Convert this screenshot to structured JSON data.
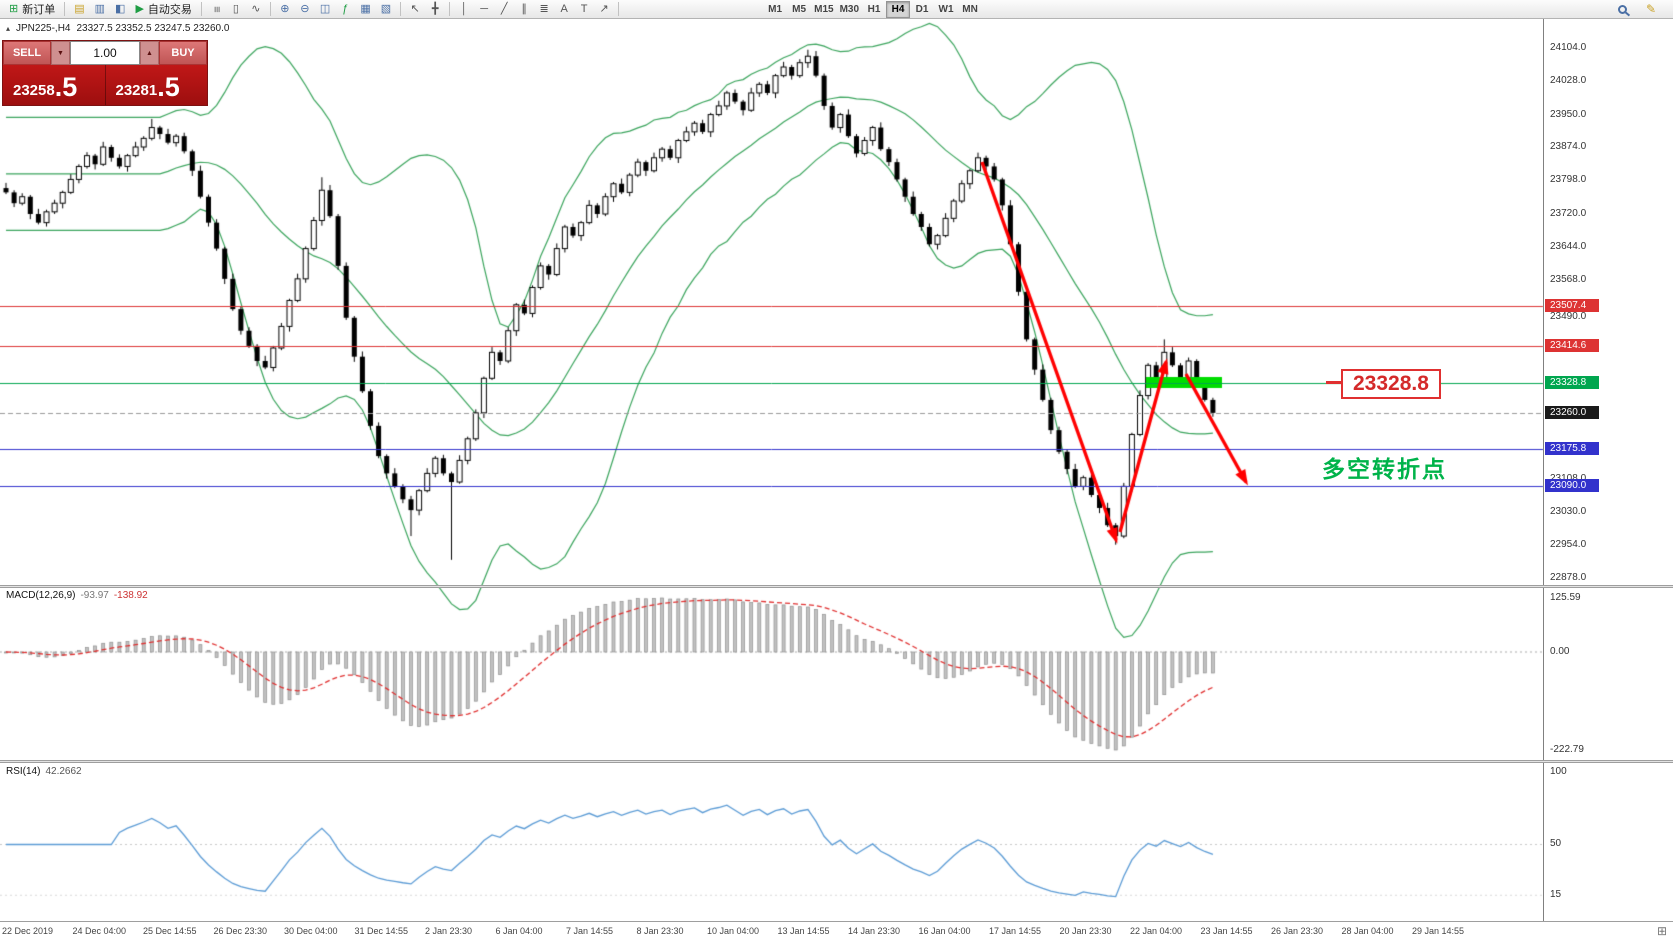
{
  "toolbar": {
    "new_order_label": "新订单",
    "autotrading_label": "自动交易",
    "timeframes": [
      "M1",
      "M5",
      "M15",
      "M30",
      "H1",
      "H4",
      "D1",
      "W1",
      "MN"
    ],
    "active_timeframe": "H4"
  },
  "icons": {
    "new_chart": "⊞",
    "profiles": "▤",
    "market_watch": "▥",
    "navigator": "◧",
    "play": "▶",
    "bar_chart": "≡",
    "candle_chart": "▯",
    "line_chart": "∿",
    "zoom_in": "⊕",
    "zoom_out": "⊖",
    "tile_windows": "◫",
    "indicators": "ƒ",
    "periods": "▦",
    "templates": "▧",
    "cursor": "↖",
    "crosshair": "╋",
    "vline": "│",
    "hline": "─",
    "trendline": "╱",
    "channel": "∥",
    "fibonacci": "≣",
    "text": "A",
    "label": "T",
    "arrow_tool": "↗",
    "pencil": "✎",
    "collapse": "▴",
    "dropdown_down": "▼",
    "dropdown_up": "▲",
    "grip": "⊞"
  },
  "symbol_bar": {
    "symbol": "JPN225-,H4",
    "ohlc": "23327.5 23352.5 23247.5 23260.0"
  },
  "order_panel": {
    "sell_label": "SELL",
    "buy_label": "BUY",
    "volume": "1.00",
    "sell_price_int": "23258",
    "sell_price_frac": ".5",
    "buy_price_int": "23281",
    "buy_price_frac": ".5"
  },
  "price_axis": {
    "regular_labels": [
      "24104.0",
      "24028.0",
      "23950.0",
      "23874.0",
      "23798.0",
      "23720.0",
      "23644.0",
      "23568.0",
      "23490.0",
      "23108.0",
      "23030.0",
      "22954.0",
      "22878.0"
    ]
  },
  "hlines": [
    {
      "label": "23507.4",
      "value": 23507.4,
      "color": "#dd3333",
      "type": "resistance"
    },
    {
      "label": "23414.6",
      "value": 23414.6,
      "color": "#dd3333",
      "type": "resistance"
    },
    {
      "label": "23328.8",
      "value": 23328.8,
      "color": "#00a64f",
      "type": "pivot"
    },
    {
      "label": "23260.0",
      "value": 23260.0,
      "color": "#1a1a1a",
      "type": "current"
    },
    {
      "label": "23175.8",
      "value": 23175.8,
      "color": "#3232cc",
      "type": "support"
    },
    {
      "label": "23090.0",
      "value": 23090.0,
      "color": "#3232cc",
      "type": "support"
    }
  ],
  "annotations": {
    "price_callout": "23328.8",
    "turning_point_text": "多空转折点",
    "highlight_zone": {
      "price": 23328.8,
      "color": "#00dd00"
    }
  },
  "chart_data": {
    "type": "candlestick",
    "symbol": "JPN225-",
    "timeframe": "H4",
    "price_range": [
      22878.0,
      24104.0
    ],
    "first_open": 23780,
    "closes": [
      23770,
      23745,
      23760,
      23720,
      23700,
      23725,
      23745,
      23770,
      23800,
      23830,
      23855,
      23835,
      23875,
      23850,
      23830,
      23855,
      23875,
      23895,
      23920,
      23905,
      23885,
      23900,
      23865,
      23820,
      23760,
      23700,
      23640,
      23570,
      23500,
      23450,
      23415,
      23380,
      23365,
      23410,
      23460,
      23520,
      23570,
      23640,
      23705,
      23775,
      23715,
      23600,
      23480,
      23390,
      23310,
      23230,
      23160,
      23120,
      23090,
      23060,
      23035,
      23080,
      23120,
      23155,
      23120,
      23100,
      23150,
      23200,
      23260,
      23340,
      23400,
      23380,
      23450,
      23510,
      23490,
      23550,
      23600,
      23580,
      23640,
      23690,
      23670,
      23700,
      23740,
      23720,
      23760,
      23790,
      23770,
      23810,
      23840,
      23820,
      23850,
      23870,
      23850,
      23890,
      23910,
      23930,
      23910,
      23950,
      23970,
      24000,
      23980,
      23960,
      24000,
      24020,
      24000,
      24040,
      24060,
      24040,
      24070,
      24085,
      24040,
      23970,
      23920,
      23950,
      23900,
      23860,
      23890,
      23920,
      23870,
      23840,
      23800,
      23760,
      23720,
      23690,
      23650,
      23670,
      23710,
      23750,
      23790,
      23820,
      23850,
      23830,
      23800,
      23740,
      23650,
      23540,
      23430,
      23360,
      23290,
      23220,
      23170,
      23130,
      23090,
      23110,
      23070,
      23040,
      23000,
      22975,
      23090,
      23210,
      23300,
      23370,
      23340,
      23400,
      23370,
      23340,
      23380,
      23330,
      23290,
      23260
    ],
    "special_wicks": {
      "18": {
        "high": 23940
      },
      "39": {
        "high": 23805
      },
      "50": {
        "low": 22975
      },
      "55": {
        "low": 22920
      },
      "99": {
        "high": 24100
      },
      "137": {
        "low": 22955
      },
      "143": {
        "high": 23430
      }
    },
    "overlays": [
      {
        "name": "Bollinger Bands",
        "period": 20,
        "deviation": 2,
        "color": "#3aa45c"
      }
    ]
  },
  "macd_panel": {
    "name": "MACD(12,26,9)",
    "value_main": "-93.97",
    "value_signal": "-138.92",
    "axis_labels": [
      "125.59",
      "0.00",
      "-222.79"
    ],
    "histogram_color": "#c2c2c2",
    "signal_color": "#e03030"
  },
  "rsi_panel": {
    "name": "RSI(14)",
    "value": "42.2662",
    "axis_labels": [
      "100",
      "50",
      "15"
    ],
    "line_color": "#5b9bd5"
  },
  "time_axis": {
    "labels": [
      "22 Dec 2019",
      "24 Dec 04:00",
      "25 Dec 14:55",
      "26 Dec 23:30",
      "30 Dec 04:00",
      "31 Dec 14:55",
      "2 Jan 23:30",
      "6 Jan 04:00",
      "7 Jan 14:55",
      "8 Jan 23:30",
      "10 Jan 04:00",
      "13 Jan 14:55",
      "14 Jan 23:30",
      "16 Jan 04:00",
      "17 Jan 14:55",
      "20 Jan 23:30",
      "22 Jan 04:00",
      "23 Jan 14:55",
      "26 Jan 23:30",
      "28 Jan 04:00",
      "29 Jan 14:55"
    ]
  }
}
